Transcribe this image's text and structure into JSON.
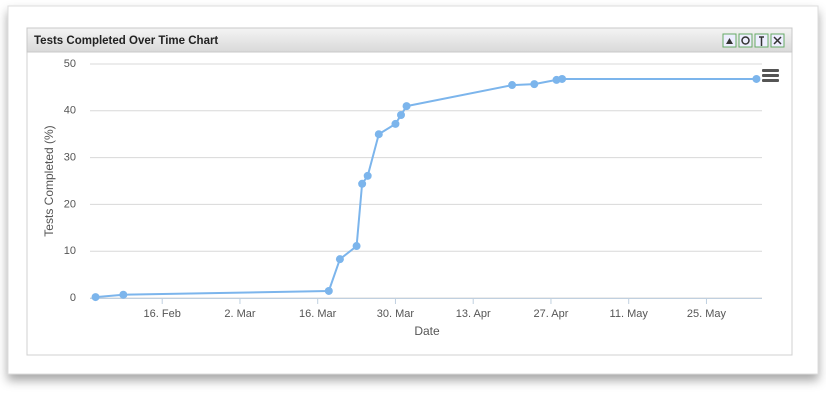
{
  "chart_data": {
    "type": "line",
    "title": "Tests Completed Over Time Chart",
    "x_label": "Date",
    "y_label": "Tests Completed (%)",
    "x": [
      "02-04",
      "02-09",
      "03-18",
      "03-20",
      "03-23",
      "03-24",
      "03-25",
      "03-27",
      "03-30",
      "03-31",
      "04-01",
      "04-20",
      "04-24",
      "04-28",
      "04-29",
      "06-03"
    ],
    "values": [
      0.2,
      0.7,
      1.5,
      8.3,
      11.1,
      24.4,
      26.1,
      35,
      37.2,
      39.1,
      41,
      45.5,
      45.7,
      46.6,
      46.8,
      46.8
    ],
    "color": "#7cb5ec",
    "xlim": [
      "02-03",
      "06-04"
    ],
    "xticks": [
      {
        "value": "02-16",
        "label": "16. Feb"
      },
      {
        "value": "03-02",
        "label": "2. Mar"
      },
      {
        "value": "03-16",
        "label": "16. Mar"
      },
      {
        "value": "03-30",
        "label": "30. Mar"
      },
      {
        "value": "04-13",
        "label": "13. Apr"
      },
      {
        "value": "04-27",
        "label": "27. Apr"
      },
      {
        "value": "05-11",
        "label": "11. May"
      },
      {
        "value": "05-25",
        "label": "25. May"
      }
    ],
    "ylim": [
      0,
      50
    ],
    "yticks": [
      0,
      10,
      20,
      30,
      40,
      50
    ],
    "grid": true
  }
}
